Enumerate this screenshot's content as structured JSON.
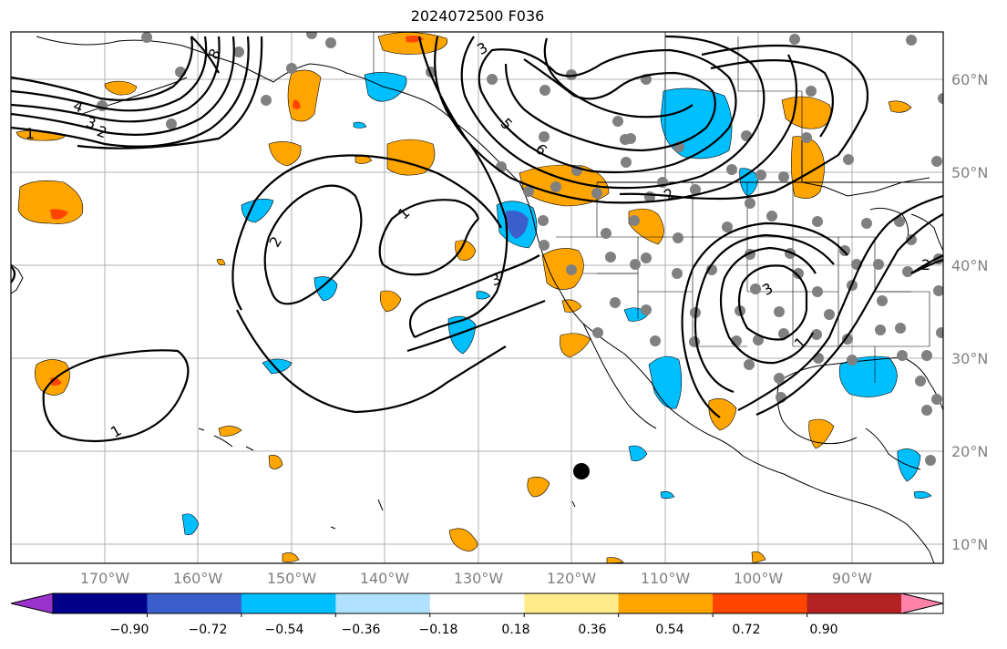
{
  "title": "2024072500 F036",
  "lat_labels": [
    "60°N",
    "50°N",
    "40°N",
    "30°N",
    "20°N",
    "10°N"
  ],
  "lon_labels": [
    "170°W",
    "160°W",
    "150°W",
    "140°W",
    "130°W",
    "120°W",
    "110°W",
    "100°W",
    "90°W"
  ],
  "colorbar": {
    "tick_labels": [
      "−0.90",
      "−0.72",
      "−0.54",
      "−0.36",
      "−0.18",
      "0.18",
      "0.36",
      "0.54",
      "0.72",
      "0.90"
    ],
    "colors": [
      "#9a32cd",
      "#00008b",
      "#3a5fcd",
      "#00bfff",
      "#b0e2ff",
      "#ffffff",
      "#ffec8b",
      "#ffa500",
      "#ff4500",
      "#b22222",
      "#ff82ab"
    ]
  },
  "contour_labels": [
    "1",
    "2",
    "3",
    "4",
    "5",
    "6",
    "8"
  ],
  "colors": {
    "positive_fill": "#ffa500",
    "negative_fill": "#00bfff",
    "strong_positive": "#ff4500",
    "strong_negative": "#3a5fcd",
    "station_dot": "#808080",
    "grid": "#b0b0b0"
  }
}
